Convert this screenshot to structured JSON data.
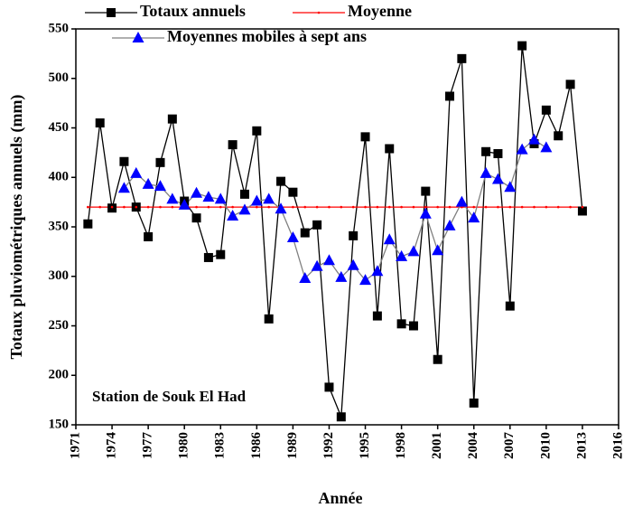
{
  "chart_data": {
    "type": "line",
    "x": [
      1972,
      1973,
      1974,
      1975,
      1976,
      1977,
      1978,
      1979,
      1980,
      1981,
      1982,
      1983,
      1984,
      1985,
      1986,
      1987,
      1988,
      1989,
      1990,
      1991,
      1992,
      1993,
      1994,
      1995,
      1996,
      1997,
      1998,
      1999,
      2000,
      2001,
      2002,
      2003,
      2004,
      2005,
      2006,
      2007,
      2008,
      2009,
      2010,
      2011,
      2012,
      2013
    ],
    "series": [
      {
        "name": "Totaux annuels",
        "color": "#000000",
        "marker": "square",
        "values": [
          353,
          455,
          369,
          416,
          370,
          340,
          415,
          459,
          376,
          359,
          319,
          322,
          433,
          383,
          447,
          257,
          396,
          385,
          344,
          352,
          188,
          158,
          341,
          441,
          260,
          429,
          252,
          250,
          386,
          216,
          482,
          520,
          172,
          426,
          424,
          270,
          533,
          434,
          468,
          442,
          494,
          366
        ]
      },
      {
        "name": "Moyenne",
        "color": "#ff0000",
        "marker": "dot",
        "values": [
          370,
          370,
          370,
          370,
          370,
          370,
          370,
          370,
          370,
          370,
          370,
          370,
          370,
          370,
          370,
          370,
          370,
          370,
          370,
          370,
          370,
          370,
          370,
          370,
          370,
          370,
          370,
          370,
          370,
          370,
          370,
          370,
          370,
          370,
          370,
          370,
          370,
          370,
          370,
          370,
          370,
          370
        ]
      },
      {
        "name": "Moyennes mobiles à sept ans",
        "color": "#808080",
        "marker": "triangle",
        "marker_color": "#0000ff",
        "values": [
          null,
          null,
          null,
          389,
          404,
          393,
          391,
          378,
          372,
          384,
          380,
          378,
          361,
          367,
          376,
          378,
          368,
          339,
          298,
          310,
          316,
          299,
          311,
          296,
          305,
          337,
          320,
          325,
          363,
          326,
          351,
          375,
          359,
          404,
          398,
          390,
          428,
          438,
          430,
          null,
          null,
          null
        ]
      }
    ],
    "xlim": [
      1971,
      2016
    ],
    "xticks": [
      1971,
      1974,
      1977,
      1980,
      1983,
      1986,
      1989,
      1992,
      1995,
      1998,
      2001,
      2004,
      2007,
      2010,
      2013,
      2016
    ],
    "ylim": [
      150,
      550
    ],
    "yticks": [
      150,
      200,
      250,
      300,
      350,
      400,
      450,
      500,
      550
    ],
    "x_label": "Année",
    "y_label": "Totaux pluviométriques annuels (mm)",
    "annotation": "Station de Souk El Had",
    "legend": "upper left"
  }
}
